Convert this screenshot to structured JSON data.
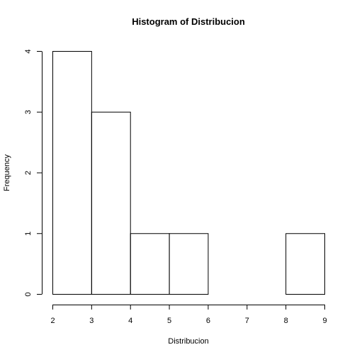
{
  "chart_data": {
    "type": "bar",
    "subtype": "histogram",
    "title": "Histogram of Distribucion",
    "xlabel": "Distribucion",
    "ylabel": "Frequency",
    "bins": [
      {
        "start": 2,
        "end": 3,
        "count": 4
      },
      {
        "start": 3,
        "end": 4,
        "count": 3
      },
      {
        "start": 4,
        "end": 5,
        "count": 1
      },
      {
        "start": 5,
        "end": 6,
        "count": 1
      },
      {
        "start": 6,
        "end": 7,
        "count": 0
      },
      {
        "start": 7,
        "end": 8,
        "count": 0
      },
      {
        "start": 8,
        "end": 9,
        "count": 1
      }
    ],
    "xlim": [
      2,
      9
    ],
    "ylim": [
      0,
      4
    ],
    "x_ticks": [
      "2",
      "3",
      "4",
      "5",
      "6",
      "7",
      "8",
      "9"
    ],
    "y_ticks": [
      "0",
      "1",
      "2",
      "3",
      "4"
    ],
    "grid": false,
    "bar_fill": "#ffffff",
    "bar_stroke": "#000000"
  }
}
